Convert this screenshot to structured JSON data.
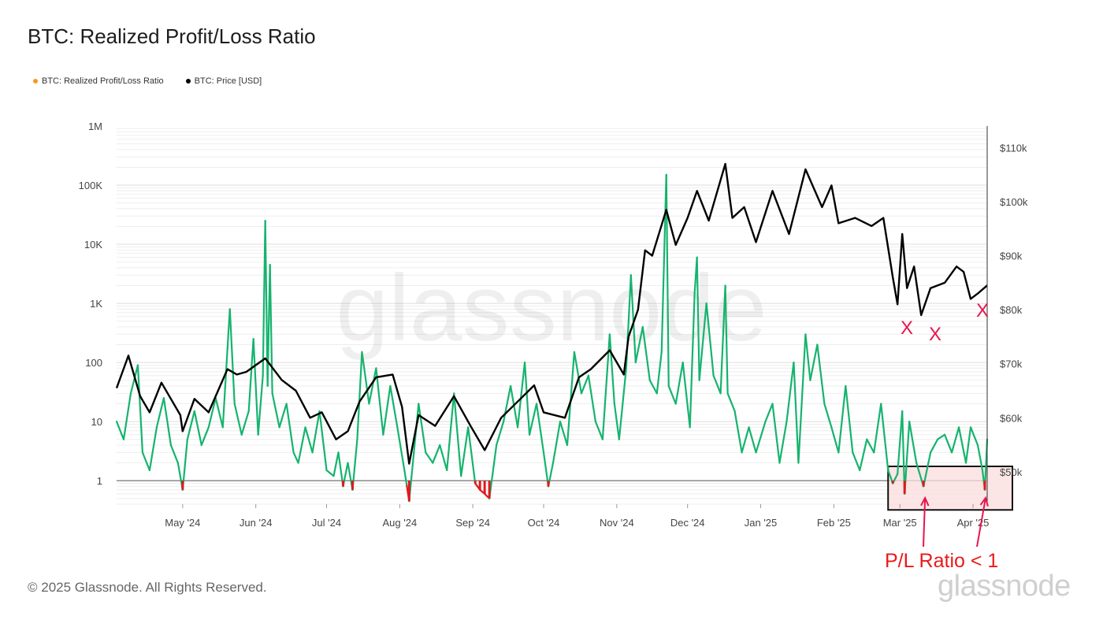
{
  "title": "BTC: Realized Profit/Loss Ratio",
  "copyright": "© 2025 Glassnode. All Rights Reserved.",
  "brand": "glassnode",
  "watermark": "glassnode",
  "colors": {
    "ratio_above_1": "#16b36e",
    "ratio_below_1": "#e0191e",
    "price": "#000000",
    "legend_ratio_dot": "#f59a23",
    "legend_price_dot": "#000000",
    "annotation": "#e8144f",
    "highlight_fill": "#fbdcdc"
  },
  "annotations": {
    "x_marks": [
      "X",
      "X",
      "X"
    ],
    "label": "P/L Ratio < 1"
  },
  "chart_data": {
    "type": "line",
    "title": "BTC: Realized Profit/Loss Ratio",
    "legend": {
      "placement": "top-left",
      "entries": [
        "BTC: Realized Profit/Loss Ratio",
        "BTC: Price [USD]"
      ]
    },
    "x_range": [
      "2024-04-03",
      "2025-04-07"
    ],
    "x_ticks": [
      "May '24",
      "Jun '24",
      "Jul '24",
      "Aug '24",
      "Sep '24",
      "Oct '24",
      "Nov '24",
      "Dec '24",
      "Jan '25",
      "Feb '25",
      "Mar '25",
      "Apr '25"
    ],
    "y_left": {
      "scale": "log",
      "range": [
        0.4,
        1000000
      ],
      "ticks": [
        "1",
        "10",
        "100",
        "1K",
        "10K",
        "100K",
        "1M"
      ],
      "reference_line": 1
    },
    "y_right": {
      "scale": "linear",
      "range": [
        44000,
        114000
      ],
      "ticks": [
        "$50k",
        "$60k",
        "$70k",
        "$80k",
        "$90k",
        "$100k",
        "$110k"
      ]
    },
    "grid": true,
    "series": [
      {
        "name": "BTC: Realized Profit/Loss Ratio",
        "axis": "left",
        "color_rule": "green above 1, red below 1",
        "points": [
          [
            "2024-04-03",
            10
          ],
          [
            "2024-04-06",
            5
          ],
          [
            "2024-04-09",
            30
          ],
          [
            "2024-04-12",
            90
          ],
          [
            "2024-04-14",
            3
          ],
          [
            "2024-04-17",
            1.5
          ],
          [
            "2024-04-20",
            8
          ],
          [
            "2024-04-23",
            25
          ],
          [
            "2024-04-26",
            4
          ],
          [
            "2024-04-29",
            2
          ],
          [
            "2024-05-01",
            0.7
          ],
          [
            "2024-05-03",
            5
          ],
          [
            "2024-05-06",
            15
          ],
          [
            "2024-05-09",
            4
          ],
          [
            "2024-05-12",
            8
          ],
          [
            "2024-05-15",
            25
          ],
          [
            "2024-05-18",
            8
          ],
          [
            "2024-05-21",
            800
          ],
          [
            "2024-05-23",
            20
          ],
          [
            "2024-05-26",
            6
          ],
          [
            "2024-05-29",
            15
          ],
          [
            "2024-05-31",
            250
          ],
          [
            "2024-06-02",
            6
          ],
          [
            "2024-06-04",
            60
          ],
          [
            "2024-06-05",
            25000
          ],
          [
            "2024-06-06",
            40
          ],
          [
            "2024-06-07",
            4500
          ],
          [
            "2024-06-08",
            30
          ],
          [
            "2024-06-11",
            8
          ],
          [
            "2024-06-14",
            20
          ],
          [
            "2024-06-17",
            3
          ],
          [
            "2024-06-19",
            2
          ],
          [
            "2024-06-22",
            8
          ],
          [
            "2024-06-25",
            3
          ],
          [
            "2024-06-28",
            15
          ],
          [
            "2024-07-01",
            1.5
          ],
          [
            "2024-07-04",
            1.2
          ],
          [
            "2024-07-06",
            3
          ],
          [
            "2024-07-08",
            0.8
          ],
          [
            "2024-07-10",
            2
          ],
          [
            "2024-07-12",
            0.7
          ],
          [
            "2024-07-14",
            5
          ],
          [
            "2024-07-16",
            150
          ],
          [
            "2024-07-19",
            20
          ],
          [
            "2024-07-22",
            80
          ],
          [
            "2024-07-25",
            6
          ],
          [
            "2024-07-28",
            40
          ],
          [
            "2024-07-31",
            8
          ],
          [
            "2024-08-03",
            1.5
          ],
          [
            "2024-08-05",
            0.45
          ],
          [
            "2024-08-07",
            3
          ],
          [
            "2024-08-09",
            20
          ],
          [
            "2024-08-12",
            3
          ],
          [
            "2024-08-15",
            2
          ],
          [
            "2024-08-18",
            4
          ],
          [
            "2024-08-21",
            1.5
          ],
          [
            "2024-08-24",
            30
          ],
          [
            "2024-08-27",
            1.2
          ],
          [
            "2024-08-30",
            8
          ],
          [
            "2024-09-02",
            0.9
          ],
          [
            "2024-09-04",
            0.7
          ],
          [
            "2024-09-06",
            0.6
          ],
          [
            "2024-09-08",
            0.5
          ],
          [
            "2024-09-11",
            4
          ],
          [
            "2024-09-14",
            10
          ],
          [
            "2024-09-17",
            40
          ],
          [
            "2024-09-20",
            8
          ],
          [
            "2024-09-23",
            100
          ],
          [
            "2024-09-25",
            6
          ],
          [
            "2024-09-28",
            20
          ],
          [
            "2024-10-01",
            3
          ],
          [
            "2024-10-03",
            0.8
          ],
          [
            "2024-10-05",
            2
          ],
          [
            "2024-10-08",
            10
          ],
          [
            "2024-10-11",
            4
          ],
          [
            "2024-10-14",
            150
          ],
          [
            "2024-10-17",
            30
          ],
          [
            "2024-10-20",
            60
          ],
          [
            "2024-10-23",
            10
          ],
          [
            "2024-10-26",
            5
          ],
          [
            "2024-10-29",
            300
          ],
          [
            "2024-10-31",
            20
          ],
          [
            "2024-11-02",
            5
          ],
          [
            "2024-11-05",
            80
          ],
          [
            "2024-11-07",
            3000
          ],
          [
            "2024-11-09",
            100
          ],
          [
            "2024-11-12",
            400
          ],
          [
            "2024-11-15",
            50
          ],
          [
            "2024-11-18",
            30
          ],
          [
            "2024-11-20",
            150
          ],
          [
            "2024-11-22",
            150000
          ],
          [
            "2024-11-23",
            40
          ],
          [
            "2024-11-26",
            20
          ],
          [
            "2024-11-29",
            100
          ],
          [
            "2024-12-02",
            8
          ],
          [
            "2024-12-04",
            1500
          ],
          [
            "2024-12-05",
            6000
          ],
          [
            "2024-12-06",
            50
          ],
          [
            "2024-12-09",
            1000
          ],
          [
            "2024-12-12",
            60
          ],
          [
            "2024-12-15",
            30
          ],
          [
            "2024-12-17",
            2000
          ],
          [
            "2024-12-18",
            30
          ],
          [
            "2024-12-21",
            15
          ],
          [
            "2024-12-24",
            3
          ],
          [
            "2024-12-27",
            8
          ],
          [
            "2024-12-30",
            3
          ],
          [
            "2025-01-03",
            10
          ],
          [
            "2025-01-06",
            20
          ],
          [
            "2025-01-09",
            2
          ],
          [
            "2025-01-12",
            10
          ],
          [
            "2025-01-15",
            100
          ],
          [
            "2025-01-17",
            2
          ],
          [
            "2025-01-20",
            300
          ],
          [
            "2025-01-22",
            50
          ],
          [
            "2025-01-25",
            200
          ],
          [
            "2025-01-28",
            20
          ],
          [
            "2025-01-31",
            8
          ],
          [
            "2025-02-03",
            3
          ],
          [
            "2025-02-06",
            40
          ],
          [
            "2025-02-09",
            3
          ],
          [
            "2025-02-12",
            1.5
          ],
          [
            "2025-02-15",
            5
          ],
          [
            "2025-02-18",
            3
          ],
          [
            "2025-02-21",
            20
          ],
          [
            "2025-02-24",
            1.5
          ],
          [
            "2025-02-26",
            0.9
          ],
          [
            "2025-02-28",
            1.3
          ],
          [
            "2025-03-02",
            15
          ],
          [
            "2025-03-03",
            0.6
          ],
          [
            "2025-03-05",
            10
          ],
          [
            "2025-03-08",
            2
          ],
          [
            "2025-03-11",
            0.8
          ],
          [
            "2025-03-14",
            3
          ],
          [
            "2025-03-17",
            5
          ],
          [
            "2025-03-20",
            6
          ],
          [
            "2025-03-23",
            3
          ],
          [
            "2025-03-26",
            8
          ],
          [
            "2025-03-29",
            2
          ],
          [
            "2025-03-31",
            8
          ],
          [
            "2025-04-03",
            4
          ],
          [
            "2025-04-05",
            1.5
          ],
          [
            "2025-04-06",
            0.7
          ],
          [
            "2025-04-07",
            5
          ]
        ]
      },
      {
        "name": "BTC: Price [USD]",
        "axis": "right",
        "points": [
          [
            "2024-04-03",
            65500
          ],
          [
            "2024-04-08",
            71500
          ],
          [
            "2024-04-13",
            64000
          ],
          [
            "2024-04-17",
            61000
          ],
          [
            "2024-04-22",
            66500
          ],
          [
            "2024-04-26",
            63500
          ],
          [
            "2024-04-30",
            60500
          ],
          [
            "2024-05-01",
            57500
          ],
          [
            "2024-05-06",
            63500
          ],
          [
            "2024-05-12",
            61000
          ],
          [
            "2024-05-20",
            69000
          ],
          [
            "2024-05-24",
            68000
          ],
          [
            "2024-05-28",
            68500
          ],
          [
            "2024-06-05",
            71000
          ],
          [
            "2024-06-12",
            67000
          ],
          [
            "2024-06-18",
            65000
          ],
          [
            "2024-06-24",
            60000
          ],
          [
            "2024-06-29",
            61000
          ],
          [
            "2024-07-05",
            56000
          ],
          [
            "2024-07-10",
            57500
          ],
          [
            "2024-07-15",
            63000
          ],
          [
            "2024-07-22",
            67500
          ],
          [
            "2024-07-29",
            68000
          ],
          [
            "2024-08-02",
            62000
          ],
          [
            "2024-08-05",
            51500
          ],
          [
            "2024-08-09",
            60500
          ],
          [
            "2024-08-16",
            58500
          ],
          [
            "2024-08-24",
            64000
          ],
          [
            "2024-08-31",
            58500
          ],
          [
            "2024-09-06",
            54000
          ],
          [
            "2024-09-13",
            60000
          ],
          [
            "2024-09-20",
            63000
          ],
          [
            "2024-09-27",
            66000
          ],
          [
            "2024-10-01",
            61000
          ],
          [
            "2024-10-10",
            60000
          ],
          [
            "2024-10-16",
            67500
          ],
          [
            "2024-10-21",
            69000
          ],
          [
            "2024-10-29",
            72500
          ],
          [
            "2024-11-04",
            68000
          ],
          [
            "2024-11-06",
            75000
          ],
          [
            "2024-11-10",
            80000
          ],
          [
            "2024-11-13",
            91000
          ],
          [
            "2024-11-16",
            90000
          ],
          [
            "2024-11-22",
            98500
          ],
          [
            "2024-11-26",
            92000
          ],
          [
            "2024-12-01",
            97000
          ],
          [
            "2024-12-05",
            102000
          ],
          [
            "2024-12-10",
            96500
          ],
          [
            "2024-12-17",
            107000
          ],
          [
            "2024-12-20",
            97000
          ],
          [
            "2024-12-25",
            99000
          ],
          [
            "2024-12-30",
            92500
          ],
          [
            "2025-01-06",
            102000
          ],
          [
            "2025-01-13",
            94000
          ],
          [
            "2025-01-20",
            106000
          ],
          [
            "2025-01-27",
            99000
          ],
          [
            "2025-01-31",
            103000
          ],
          [
            "2025-02-03",
            96000
          ],
          [
            "2025-02-10",
            97000
          ],
          [
            "2025-02-17",
            95500
          ],
          [
            "2025-02-22",
            97000
          ],
          [
            "2025-02-26",
            86000
          ],
          [
            "2025-02-28",
            81000
          ],
          [
            "2025-03-02",
            94000
          ],
          [
            "2025-03-04",
            84000
          ],
          [
            "2025-03-07",
            88000
          ],
          [
            "2025-03-10",
            79000
          ],
          [
            "2025-03-14",
            84000
          ],
          [
            "2025-03-20",
            85000
          ],
          [
            "2025-03-25",
            88000
          ],
          [
            "2025-03-28",
            87000
          ],
          [
            "2025-03-31",
            82000
          ],
          [
            "2025-04-03",
            83000
          ],
          [
            "2025-04-07",
            84500
          ]
        ]
      }
    ]
  }
}
